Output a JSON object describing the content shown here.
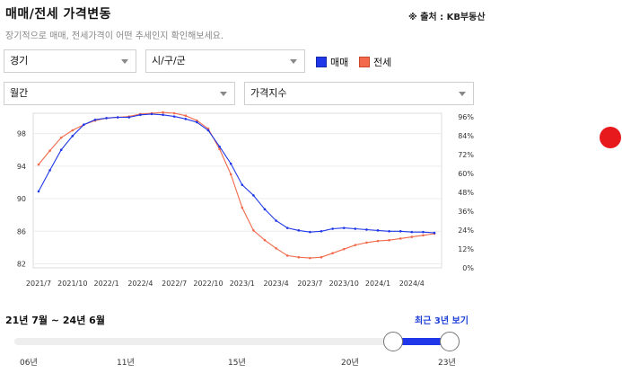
{
  "header": {
    "title": "매매/전세 가격변동",
    "source": "※ 출처 : KB부동산",
    "subtitle": "장기적으로 매매, 전세가격이 어떤 추세인지 확인해보세요."
  },
  "filters": {
    "region": "경기",
    "district": "시/구/군",
    "period": "월간",
    "type": "가격지수"
  },
  "legend": {
    "sale": "매매",
    "jeonse": "전세"
  },
  "colors": {
    "sale": "#1f37e8",
    "jeonse": "#f26a4b",
    "accent": "#1f3fd8",
    "marker": "#e8191c"
  },
  "chart_data": {
    "type": "line",
    "x": [
      "2021/7",
      "2021/8",
      "2021/9",
      "2021/10",
      "2021/11",
      "2021/12",
      "2022/1",
      "2022/2",
      "2022/3",
      "2022/4",
      "2022/5",
      "2022/6",
      "2022/7",
      "2022/8",
      "2022/9",
      "2022/10",
      "2022/11",
      "2022/12",
      "2023/1",
      "2023/2",
      "2023/3",
      "2023/4",
      "2023/5",
      "2023/6",
      "2023/7",
      "2023/8",
      "2023/9",
      "2023/10",
      "2023/11",
      "2023/12",
      "2024/1",
      "2024/2",
      "2024/3",
      "2024/4",
      "2024/5",
      "2024/6"
    ],
    "x_tick_labels": [
      "2021/7",
      "2021/10",
      "2022/1",
      "2022/4",
      "2022/7",
      "2022/10",
      "2023/1",
      "2023/4",
      "2023/7",
      "2023/10",
      "2024/1",
      "2024/4"
    ],
    "y_left_ticks": [
      "98",
      "94",
      "90",
      "86",
      "82"
    ],
    "y_right_ticks": [
      "96%",
      "84%",
      "72%",
      "60%",
      "48%",
      "36%",
      "24%",
      "12%",
      "0%"
    ],
    "ylim": [
      81.5,
      100.5
    ],
    "series": [
      {
        "name": "매매",
        "values": [
          90.9,
          93.5,
          96.0,
          97.7,
          99.1,
          99.7,
          99.9,
          100.0,
          100.0,
          100.3,
          100.4,
          100.3,
          100.1,
          99.8,
          99.4,
          98.4,
          96.4,
          94.3,
          91.7,
          90.4,
          88.7,
          87.3,
          86.4,
          86.1,
          85.9,
          86.0,
          86.3,
          86.4,
          86.3,
          86.2,
          86.1,
          86.0,
          86.0,
          85.9,
          85.9,
          85.8
        ]
      },
      {
        "name": "전세",
        "values": [
          94.2,
          95.9,
          97.5,
          98.4,
          99.1,
          99.6,
          99.9,
          100.0,
          100.1,
          100.4,
          100.5,
          100.6,
          100.5,
          100.2,
          99.6,
          98.6,
          96.1,
          93.0,
          88.9,
          86.1,
          84.9,
          83.9,
          83.0,
          82.8,
          82.7,
          82.8,
          83.3,
          83.8,
          84.3,
          84.6,
          84.8,
          84.9,
          85.1,
          85.3,
          85.5,
          85.7
        ]
      }
    ],
    "grid": true
  },
  "range": {
    "label": "21년 7월 ~ 24년 6월",
    "recent_link": "최근 3년 보기",
    "ticks": [
      "06년",
      "11년",
      "15년",
      "20년",
      "23년"
    ],
    "start_fraction": 0.87,
    "end_fraction": 1.0
  }
}
